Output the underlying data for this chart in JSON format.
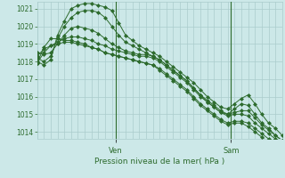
{
  "bg_color": "#cce8e8",
  "grid_color": "#aacccc",
  "line_color": "#2d6b2d",
  "title": "Pression niveau de la mer( hPa )",
  "ylabel_ticks": [
    1014,
    1015,
    1016,
    1017,
    1018,
    1019,
    1020,
    1021
  ],
  "ylim": [
    1013.6,
    1021.4
  ],
  "xlim": [
    0,
    36
  ],
  "ven_x": 11.5,
  "sam_x": 28.5,
  "series": [
    [
      1018.0,
      1017.8,
      1018.1,
      1019.5,
      1020.3,
      1021.0,
      1021.2,
      1021.3,
      1021.3,
      1021.2,
      1021.1,
      1020.9,
      1020.2,
      1019.5,
      1019.2,
      1018.9,
      1018.7,
      1018.5,
      1018.3,
      1018.0,
      1017.7,
      1017.4,
      1017.1,
      1016.8,
      1016.4,
      1016.0,
      1015.7,
      1015.4,
      1015.3,
      1015.6,
      1015.9,
      1016.1,
      1015.6,
      1015.0,
      1014.5,
      1014.2,
      1013.8
    ],
    [
      1018.2,
      1018.0,
      1018.3,
      1019.3,
      1020.0,
      1020.5,
      1020.8,
      1020.9,
      1020.9,
      1020.8,
      1020.5,
      1020.0,
      1019.5,
      1019.1,
      1018.9,
      1018.7,
      1018.5,
      1018.3,
      1018.1,
      1017.8,
      1017.5,
      1017.2,
      1016.9,
      1016.5,
      1016.1,
      1015.7,
      1015.4,
      1015.1,
      1015.0,
      1015.3,
      1015.6,
      1015.5,
      1015.0,
      1014.5,
      1014.2,
      1013.8,
      1013.5
    ],
    [
      1018.5,
      1018.4,
      1018.5,
      1019.0,
      1019.5,
      1019.9,
      1020.0,
      1019.9,
      1019.8,
      1019.6,
      1019.3,
      1019.0,
      1018.8,
      1018.6,
      1018.5,
      1018.4,
      1018.4,
      1018.3,
      1018.1,
      1017.8,
      1017.5,
      1017.2,
      1016.9,
      1016.5,
      1016.1,
      1015.8,
      1015.5,
      1015.2,
      1015.0,
      1015.1,
      1015.2,
      1015.2,
      1014.8,
      1014.4,
      1014.1,
      1013.8,
      1013.5
    ],
    [
      1017.9,
      1018.5,
      1018.9,
      1019.1,
      1019.3,
      1019.4,
      1019.4,
      1019.3,
      1019.2,
      1019.0,
      1018.9,
      1018.7,
      1018.6,
      1018.5,
      1018.4,
      1018.3,
      1018.3,
      1018.2,
      1018.0,
      1017.7,
      1017.4,
      1017.1,
      1016.8,
      1016.4,
      1016.0,
      1015.7,
      1015.4,
      1015.1,
      1014.9,
      1015.0,
      1015.0,
      1014.9,
      1014.5,
      1014.2,
      1013.9,
      1013.6,
      1013.3
    ],
    [
      1018.3,
      1018.7,
      1018.9,
      1019.0,
      1019.1,
      1019.1,
      1019.0,
      1018.9,
      1018.8,
      1018.7,
      1018.5,
      1018.4,
      1018.3,
      1018.2,
      1018.1,
      1018.0,
      1017.9,
      1017.8,
      1017.6,
      1017.3,
      1017.0,
      1016.7,
      1016.4,
      1016.0,
      1015.6,
      1015.3,
      1015.0,
      1014.7,
      1014.5,
      1014.6,
      1014.6,
      1014.5,
      1014.2,
      1013.9,
      1013.6,
      1013.3,
      1013.1
    ],
    [
      1017.9,
      1018.8,
      1019.3,
      1019.3,
      1019.2,
      1019.2,
      1019.1,
      1019.0,
      1018.8,
      1018.7,
      1018.5,
      1018.4,
      1018.3,
      1018.2,
      1018.1,
      1018.0,
      1017.9,
      1017.8,
      1017.5,
      1017.2,
      1016.9,
      1016.6,
      1016.3,
      1015.9,
      1015.5,
      1015.2,
      1014.9,
      1014.6,
      1014.4,
      1014.5,
      1014.5,
      1014.3,
      1014.0,
      1013.7,
      1013.4,
      1013.1,
      1012.9
    ]
  ],
  "ven_label": "Ven",
  "sam_label": "Sam"
}
